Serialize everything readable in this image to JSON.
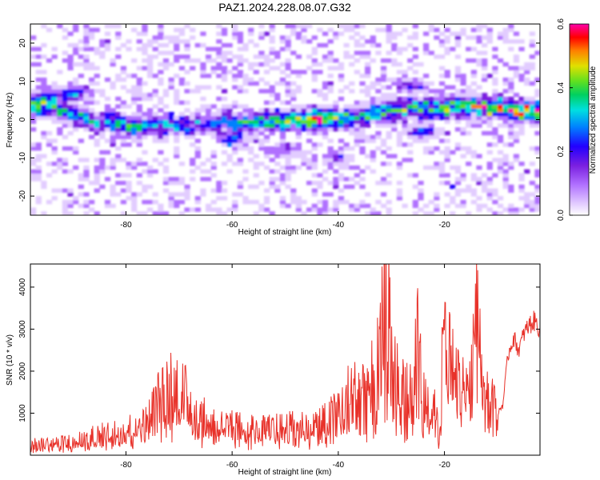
{
  "title": "PAZ1.2024.228.08.07.G32",
  "chart_data": [
    {
      "type": "heatmap",
      "xlabel": "Height of straight line (km)",
      "ylabel": "Frequency (Hz)",
      "xlim": [
        -98,
        -2
      ],
      "ylim": [
        -25,
        25
      ],
      "xticks": [
        -80,
        -60,
        -40,
        -20
      ],
      "yticks": [
        -20,
        -10,
        0,
        10,
        20
      ],
      "colorbar": {
        "label": "Normalized spectral amplitude",
        "range": [
          0,
          0.6
        ],
        "ticks": [
          "0.0",
          "0.2",
          "0.4",
          "0.6"
        ],
        "colors": [
          "#ffffff",
          "#e2ccff",
          "#b070ff",
          "#7a1fe0",
          "#2200ff",
          "#0080ff",
          "#00e0e0",
          "#00d060",
          "#60e020",
          "#e0e000",
          "#ff8000",
          "#ff0000",
          "#ff00aa"
        ]
      },
      "ridge": {
        "x": [
          -97,
          -92,
          -88,
          -84,
          -80,
          -76,
          -72,
          -68,
          -64,
          -60,
          -56,
          -52,
          -48,
          -44,
          -40,
          -36,
          -32,
          -28,
          -24,
          -20,
          -16,
          -12,
          -8,
          -4,
          -2
        ],
        "freq": [
          3.5,
          2.5,
          0.5,
          -0.5,
          -1.5,
          -1.8,
          -1.5,
          -1.0,
          -0.8,
          -0.5,
          -0.2,
          0.0,
          0.2,
          0.3,
          0.5,
          1.0,
          1.5,
          2.5,
          3.0,
          3.3,
          3.5,
          3.3,
          3.0,
          2.0,
          1.8
        ],
        "amp": [
          0.3,
          0.25,
          0.2,
          0.25,
          0.3,
          0.22,
          0.25,
          0.22,
          0.2,
          0.22,
          0.25,
          0.3,
          0.35,
          0.5,
          0.35,
          0.25,
          0.3,
          0.3,
          0.3,
          0.35,
          0.3,
          0.4,
          0.45,
          0.5,
          0.55
        ]
      },
      "side_lobes": [
        {
          "x": -90,
          "freq": 7,
          "amp": 0.25
        },
        {
          "x": -60,
          "freq": -5,
          "amp": 0.18
        },
        {
          "x": -50,
          "freq": -8,
          "amp": 0.15
        },
        {
          "x": -40,
          "freq": -10,
          "amp": 0.12
        },
        {
          "x": -24,
          "freq": -3,
          "amp": 0.2
        },
        {
          "x": -26,
          "freq": 9,
          "amp": 0.15
        },
        {
          "x": -95,
          "freq": 6,
          "amp": 0.22
        }
      ]
    },
    {
      "type": "line",
      "xlabel": "Height of straight line (km)",
      "ylabel": "SNR (10 * v/v)",
      "xlim": [
        -98,
        -2
      ],
      "ylim": [
        0,
        4550
      ],
      "xticks": [
        -80,
        -60,
        -40,
        -20
      ],
      "yticks": [
        1000,
        2000,
        3000,
        4000
      ],
      "color": "#e8322a",
      "envelope": {
        "x": [
          -98,
          -92,
          -88,
          -84,
          -80,
          -76,
          -73,
          -71,
          -69,
          -66,
          -62,
          -58,
          -54,
          -50,
          -46,
          -42,
          -40,
          -38,
          -36,
          -34,
          -32,
          -31,
          -30,
          -28,
          -26,
          -25,
          -24,
          -22,
          -21,
          -20,
          -19,
          -18,
          -17,
          -16,
          -15,
          -14,
          -13,
          -12,
          -11,
          -10,
          -9,
          -8,
          -7,
          -6,
          -5,
          -4,
          -3,
          -2
        ],
        "y": [
          250,
          300,
          400,
          500,
          600,
          800,
          1500,
          1700,
          1400,
          900,
          700,
          650,
          600,
          650,
          700,
          800,
          1100,
          1400,
          1500,
          1700,
          2300,
          4500,
          2000,
          1600,
          1700,
          3200,
          1200,
          1800,
          400,
          3200,
          2600,
          2000,
          1900,
          1700,
          1800,
          4500,
          1800,
          1700,
          1500,
          1000,
          1200,
          2400,
          2800,
          2500,
          2900,
          3100,
          3200,
          3000
        ]
      }
    }
  ]
}
